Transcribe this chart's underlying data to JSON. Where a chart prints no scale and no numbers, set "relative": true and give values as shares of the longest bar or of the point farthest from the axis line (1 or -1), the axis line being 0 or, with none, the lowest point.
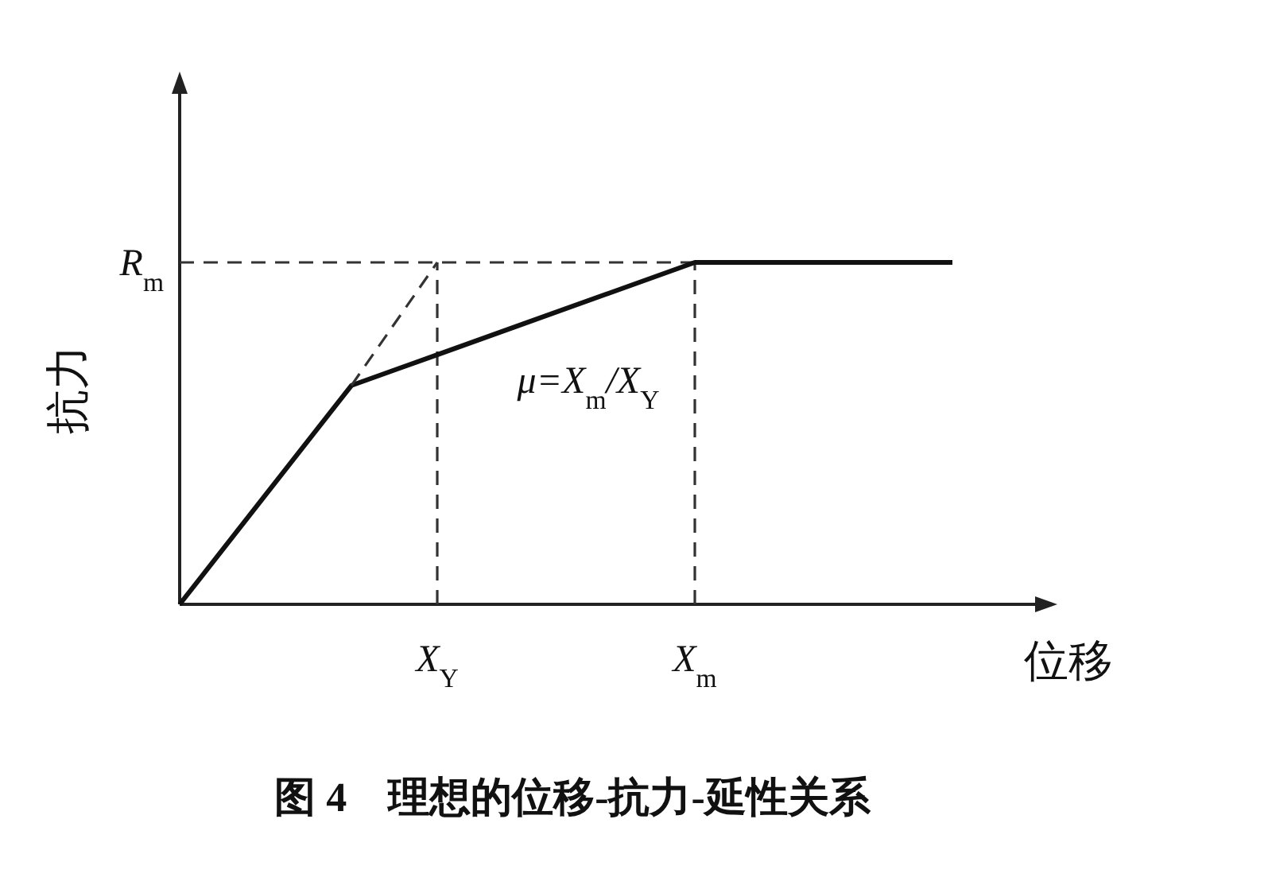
{
  "chart_data": {
    "type": "line",
    "relative": true,
    "categories": [
      null,
      null,
      null,
      "X$_{Y}$",
      null,
      null,
      "X$_{m}$",
      null,
      null,
      null
    ],
    "xlabel": "位移",
    "ylabel": "抗力",
    "series": [
      {
        "color": "#111111",
        "values": [
          0,
          0.32,
          0.64,
          0.73,
          0.82,
          0.91,
          1,
          1,
          1,
          1
        ],
        "line_style": "solid"
      },
      {
        "color": "#333333",
        "values": [
          null,
          null,
          0.64,
          1,
          null,
          null,
          null,
          null,
          null,
          null
        ],
        "line_style": "dashed"
      }
    ],
    "ref_lines": [
      {
        "axis": "y",
        "value": 1,
        "label": "R$_{m}$",
        "line_style": "dashed",
        "color": "#333333"
      },
      {
        "axis": "x",
        "value": "X$_{Y}$",
        "line_style": "dashed",
        "color": "#333333"
      },
      {
        "axis": "x",
        "value": "X$_{m}$",
        "line_style": "dashed",
        "color": "#333333"
      }
    ],
    "annotations": [
      "μ=X$_{m}$/X$_{Y}$",
      "图 4　理想的位移-抗力-延性关系"
    ]
  }
}
